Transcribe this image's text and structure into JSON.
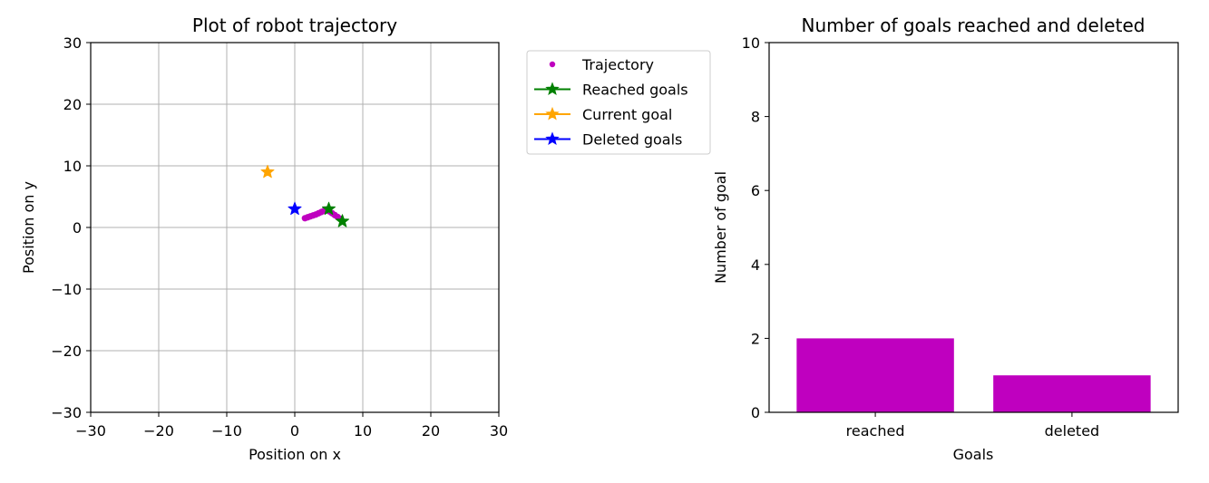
{
  "chart_data": [
    {
      "type": "scatter",
      "title": "Plot of robot trajectory",
      "xlabel": "Position on x",
      "ylabel": "Position on y",
      "xlim": [
        -30,
        30
      ],
      "ylim": [
        -30,
        30
      ],
      "xticks": [
        -30,
        -20,
        -10,
        0,
        10,
        20,
        30
      ],
      "yticks": [
        -30,
        -20,
        -10,
        0,
        10,
        20,
        30
      ],
      "grid": true,
      "legend_position": "outside-right",
      "series": [
        {
          "name": "Trajectory",
          "marker": "dot",
          "color": "#bf00bf",
          "points": [
            [
              1.5,
              1.5
            ],
            [
              1.9,
              1.65
            ],
            [
              2.3,
              1.8
            ],
            [
              2.7,
              1.95
            ],
            [
              3.1,
              2.1
            ],
            [
              3.5,
              2.3
            ],
            [
              3.9,
              2.5
            ],
            [
              4.3,
              2.7
            ],
            [
              4.7,
              2.9
            ],
            [
              5.1,
              2.6
            ],
            [
              5.5,
              2.3
            ],
            [
              5.9,
              2.0
            ],
            [
              6.3,
              1.7
            ],
            [
              6.7,
              1.4
            ]
          ]
        },
        {
          "name": "Reached goals",
          "marker": "star",
          "color": "#008000",
          "points": [
            [
              5,
              3
            ],
            [
              7,
              1
            ]
          ]
        },
        {
          "name": "Current goal",
          "marker": "star",
          "color": "#ffa500",
          "points": [
            [
              -4,
              9
            ]
          ]
        },
        {
          "name": "Deleted goals",
          "marker": "star",
          "color": "#0000ff",
          "points": [
            [
              0,
              3
            ]
          ]
        }
      ]
    },
    {
      "type": "bar",
      "title": "Number of goals reached and deleted",
      "xlabel": "Goals",
      "ylabel": "Number of goal",
      "categories": [
        "reached",
        "deleted"
      ],
      "values": [
        2,
        1
      ],
      "ylim": [
        0,
        10
      ],
      "yticks": [
        0,
        2,
        4,
        6,
        8,
        10
      ],
      "bar_color": "#bf00bf",
      "grid": false
    }
  ]
}
